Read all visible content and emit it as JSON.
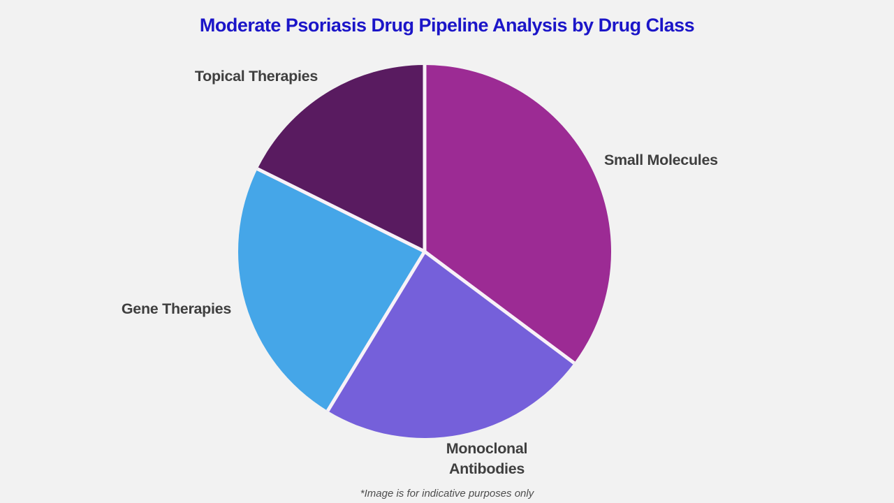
{
  "page": {
    "background_color": "#f2f2f2",
    "title": "Moderate Psoriasis Drug Pipeline Analysis by Drug Class",
    "title_color": "#1b15c8",
    "footnote": "*Image is for indicative purposes only",
    "label_color": "#3f3f3f"
  },
  "chart_data": {
    "type": "pie",
    "title": "Moderate Psoriasis Drug Pipeline Analysis by Drug Class",
    "direction": "clockwise",
    "start_angle_deg": 0,
    "labels_position": "outside",
    "divider_color": "#f8f2f8",
    "slices": [
      {
        "label": "Small Molecules",
        "value": 35.2,
        "color": "#9c2b94"
      },
      {
        "label": "Monoclonal Antibodies",
        "value": 23.5,
        "color": "#7560da"
      },
      {
        "label": "Gene Therapies",
        "value": 23.6,
        "color": "#45a6e8"
      },
      {
        "label": "Topical Therapies",
        "value": 17.7,
        "color": "#591b60"
      }
    ]
  }
}
